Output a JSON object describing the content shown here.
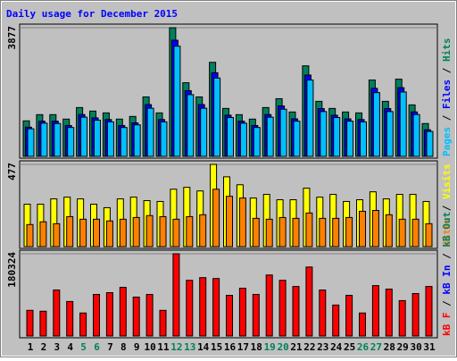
{
  "chart_data": [
    {
      "type": "bar",
      "title": "Daily usage for December 2015",
      "legend_separator": " / ",
      "ylim": [
        0,
        3877
      ],
      "yticks": [
        3877
      ],
      "series": [
        {
          "name": "Hits",
          "color": "#00805c",
          "values": [
            1070,
            1257,
            1257,
            1123,
            1471,
            1364,
            1310,
            1123,
            1203,
            1791,
            1310,
            3877,
            2219,
            1791,
            2834,
            1444,
            1257,
            1123,
            1471,
            1738,
            1337,
            2727,
            1658,
            1444,
            1337,
            1310,
            2300,
            1658,
            2326,
            1551,
            989
          ]
        },
        {
          "name": "Files",
          "color": "#0000ff",
          "values": [
            880,
            1060,
            1060,
            930,
            1260,
            1160,
            1110,
            930,
            1010,
            1560,
            1110,
            3500,
            1980,
            1560,
            2520,
            1240,
            1060,
            930,
            1260,
            1520,
            1130,
            2450,
            1440,
            1240,
            1130,
            1110,
            2050,
            1440,
            2070,
            1340,
            800
          ]
        },
        {
          "name": "Pages",
          "color": "#00c0ff",
          "values": [
            830,
            1000,
            990,
            870,
            1180,
            1090,
            1040,
            870,
            950,
            1450,
            1040,
            3320,
            1860,
            1450,
            2360,
            1170,
            1000,
            870,
            1180,
            1420,
            1060,
            2300,
            1350,
            1170,
            1060,
            1040,
            1920,
            1350,
            1940,
            1260,
            750
          ]
        }
      ]
    },
    {
      "type": "bar",
      "ylim": [
        0,
        477
      ],
      "yticks": [
        477
      ],
      "series": [
        {
          "name": "Visits",
          "color": "#ffff00",
          "values": [
            246,
            246,
            277,
            287,
            277,
            246,
            226,
            277,
            287,
            267,
            262,
            333,
            344,
            323,
            477,
            405,
            359,
            282,
            303,
            272,
            272,
            339,
            287,
            303,
            262,
            272,
            318,
            277,
            303,
            303,
            262
          ]
        },
        {
          "name": "Sites",
          "color": "#ff8000",
          "values": [
            128,
            144,
            133,
            174,
            159,
            159,
            149,
            159,
            169,
            180,
            174,
            159,
            174,
            185,
            333,
            292,
            282,
            164,
            159,
            169,
            164,
            195,
            164,
            164,
            169,
            205,
            210,
            185,
            159,
            159,
            133
          ]
        }
      ]
    },
    {
      "type": "bar",
      "ylim": [
        0,
        180324
      ],
      "yticks": [
        180324
      ],
      "categories": [
        "1",
        "2",
        "3",
        "4",
        "5",
        "6",
        "7",
        "8",
        "9",
        "10",
        "11",
        "12",
        "13",
        "14",
        "15",
        "16",
        "17",
        "18",
        "19",
        "20",
        "21",
        "22",
        "23",
        "24",
        "25",
        "26",
        "27",
        "28",
        "29",
        "30",
        "31"
      ],
      "category_colors": [
        "#000000",
        "#000000",
        "#000000",
        "#000000",
        "#00805c",
        "#00805c",
        "#000000",
        "#000000",
        "#000000",
        "#000000",
        "#000000",
        "#00805c",
        "#00805c",
        "#000000",
        "#000000",
        "#000000",
        "#000000",
        "#000000",
        "#00805c",
        "#00805c",
        "#000000",
        "#000000",
        "#000000",
        "#000000",
        "#000000",
        "#00805c",
        "#00805c",
        "#000000",
        "#000000",
        "#000000",
        "#000000"
      ],
      "series": [
        {
          "name": "kB F",
          "color": "#ff0000",
          "values": [
            56231,
            54292,
            100828,
            75621,
            50414,
            91133,
            95011,
            106645,
            85316,
            91133,
            56231,
            180324,
            122157,
            127974,
            126035,
            89194,
            104706,
            91133,
            133791,
            122157,
            108584,
            151242,
            100828,
            67865,
            89194,
            50414,
            110523,
            102767,
            77560,
            93072,
            108584
          ]
        }
      ],
      "legend": [
        {
          "name": "kB In",
          "color": "#0000ff"
        },
        {
          "name": "kB Out",
          "color": "#00805c"
        }
      ]
    }
  ]
}
